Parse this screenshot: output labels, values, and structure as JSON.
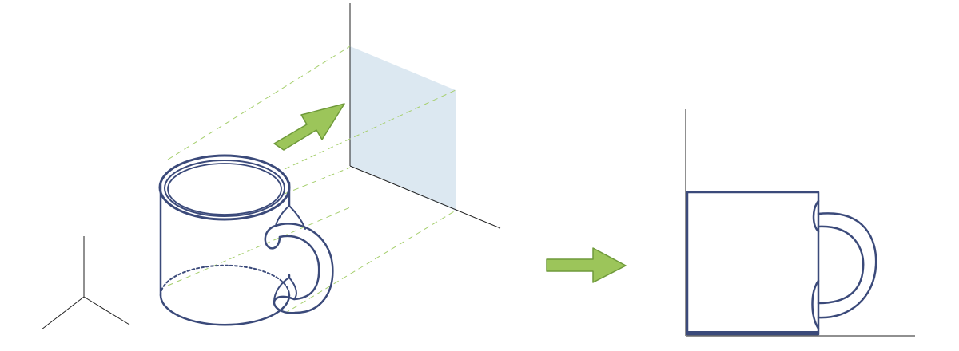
{
  "diagram": {
    "description_visible_text": "",
    "colors": {
      "outline": "#3b4a7a",
      "construction_line": "#a6cf6e",
      "projection_plane": "#dde9f1",
      "arrow_fill": "#9cc55a",
      "arrow_stroke": "#6f9a3a",
      "axis_line": "#222222"
    },
    "elements": [
      "axis-tripod",
      "isometric-mug",
      "projection-plane",
      "projection-arrow",
      "result-arrow",
      "orthographic-mug-view"
    ]
  }
}
